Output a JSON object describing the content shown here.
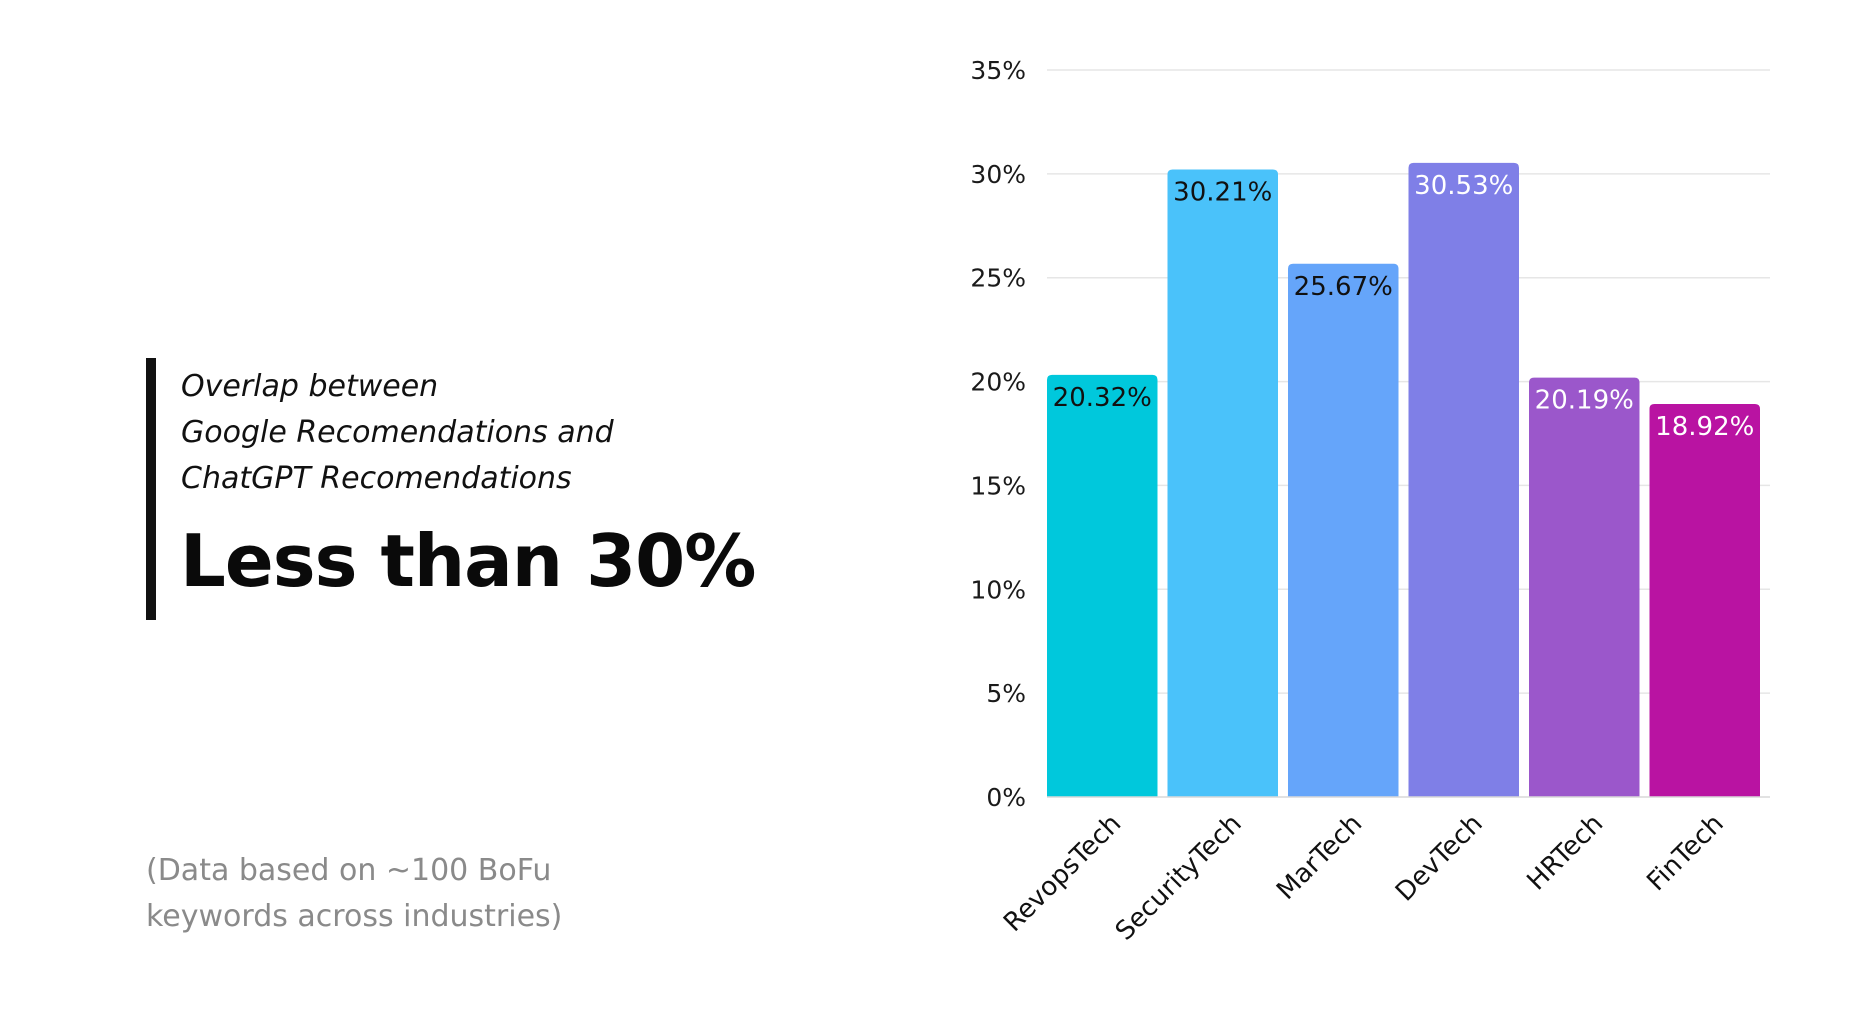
{
  "left": {
    "subtitle_lines": [
      "Overlap between",
      "Google Recomendations and",
      "ChatGPT Recomendations"
    ],
    "headline": "Less than 30%",
    "footnote_lines": [
      "(Data based on ~100 BoFu",
      "keywords across industries)"
    ]
  },
  "chart_data": {
    "type": "bar",
    "categories": [
      "RevopsTech",
      "SecurityTech",
      "MarTech",
      "DevTech",
      "HRTech",
      "FinTech"
    ],
    "values": [
      20.32,
      30.21,
      25.67,
      30.53,
      20.19,
      18.92
    ],
    "value_labels": [
      "20.32%",
      "30.21%",
      "25.67%",
      "30.53%",
      "20.19%",
      "18.92%"
    ],
    "colors": [
      "#00c8dc",
      "#4ac2fa",
      "#65a5fa",
      "#7f7fe7",
      "#9b57cb",
      "#b913a2"
    ],
    "label_colors": [
      "#111111",
      "#111111",
      "#111111",
      "#ffffff",
      "#ffffff",
      "#ffffff"
    ],
    "yticks": [
      0,
      5,
      10,
      15,
      20,
      25,
      30,
      35
    ],
    "ytick_labels": [
      "0%",
      "5%",
      "10%",
      "15%",
      "20%",
      "25%",
      "30%",
      "35%"
    ],
    "ylim": [
      0,
      35
    ],
    "grid": true,
    "grid_color": "#e6e6e6",
    "title": "",
    "xlabel": "",
    "ylabel": ""
  }
}
